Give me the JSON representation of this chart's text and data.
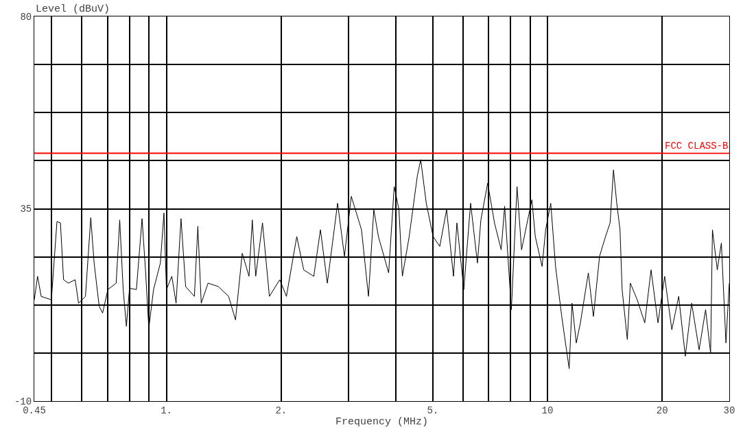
{
  "chart_data": {
    "type": "line",
    "xlabel": "Frequency (MHz)",
    "ylabel": "Level (dBuV)",
    "log": "x",
    "grid": true,
    "marker": "none",
    "line_style": "solid",
    "xlim": [
      0.45,
      30
    ],
    "ylim": [
      -10,
      80
    ],
    "xticks": [
      {
        "value": 0.45,
        "label": "0.45"
      },
      {
        "value": 0.5,
        "label": null
      },
      {
        "value": 0.6,
        "label": null
      },
      {
        "value": 0.7,
        "label": null
      },
      {
        "value": 0.8,
        "label": null
      },
      {
        "value": 0.9,
        "label": null
      },
      {
        "value": 1,
        "label": "1."
      },
      {
        "value": 2,
        "label": "2."
      },
      {
        "value": 3,
        "label": null
      },
      {
        "value": 4,
        "label": null
      },
      {
        "value": 5,
        "label": "5."
      },
      {
        "value": 6,
        "label": null
      },
      {
        "value": 7,
        "label": null
      },
      {
        "value": 8,
        "label": null
      },
      {
        "value": 9,
        "label": null
      },
      {
        "value": 10,
        "label": "10"
      },
      {
        "value": 20,
        "label": "20"
      },
      {
        "value": 30,
        "label": "30"
      }
    ],
    "yticks": [
      -10,
      {
        "value": 1.25,
        "label": null
      },
      {
        "value": 12.5,
        "label": null
      },
      {
        "value": 23.75,
        "label": null
      },
      35,
      {
        "value": 46.25,
        "label": null
      },
      {
        "value": 57.5,
        "label": null
      },
      {
        "value": 68.75,
        "label": null
      },
      80
    ],
    "ref_lines": [
      {
        "axis": "y",
        "value": 48,
        "label": "FCC CLASS-B",
        "color": "#ff0000",
        "line_style": "solid"
      }
    ],
    "series": [
      {
        "color": "#000000",
        "x": [
          0.45,
          0.459,
          0.469,
          0.499,
          0.516,
          0.527,
          0.537,
          0.553,
          0.576,
          0.588,
          0.613,
          0.633,
          0.646,
          0.666,
          0.68,
          0.702,
          0.738,
          0.754,
          0.77,
          0.785,
          0.8,
          0.834,
          0.863,
          0.881,
          0.899,
          0.925,
          0.964,
          0.985,
          1.0,
          1.033,
          1.06,
          1.092,
          1.123,
          1.184,
          1.209,
          1.234,
          1.286,
          1.368,
          1.456,
          1.518,
          1.581,
          1.647,
          1.68,
          1.715,
          1.787,
          1.863,
          1.983,
          2.065,
          2.198,
          2.292,
          2.436,
          2.536,
          2.644,
          2.813,
          2.932,
          3.056,
          3.25,
          3.39,
          3.501,
          3.6,
          3.83,
          3.96,
          4.076,
          4.161,
          4.336,
          4.553,
          4.649,
          4.807,
          5.01,
          5.216,
          5.436,
          5.666,
          5.786,
          6.031,
          6.284,
          6.549,
          6.687,
          6.967,
          7.26,
          7.56,
          7.72,
          8.04,
          8.32,
          8.55,
          9.1,
          9.29,
          9.68,
          9.89,
          10.2,
          10.5,
          10.9,
          11.4,
          11.6,
          11.9,
          12.2,
          12.8,
          13.2,
          13.7,
          14.2,
          14.6,
          14.9,
          15.2,
          15.5,
          15.7,
          16.2,
          16.5,
          17.2,
          18.0,
          18.7,
          19.5,
          20.3,
          21.2,
          22.1,
          23.0,
          23.9,
          25.0,
          26.0,
          26.8,
          27.1,
          27.9,
          28.6,
          29.4,
          30.0
        ],
        "values": [
          13.7,
          19.2,
          14.5,
          13.7,
          32.0,
          31.7,
          18.4,
          17.6,
          18.4,
          12.9,
          14.5,
          32.9,
          22.3,
          12.2,
          10.6,
          16.1,
          17.6,
          32.4,
          16.1,
          7.5,
          16.4,
          16.1,
          32.7,
          20.7,
          7.0,
          16.1,
          22.3,
          34.0,
          16.1,
          19.2,
          12.9,
          32.7,
          16.8,
          14.5,
          30.9,
          12.9,
          17.6,
          16.8,
          14.5,
          9.0,
          24.6,
          19.2,
          32.4,
          19.2,
          31.7,
          14.5,
          18.4,
          14.5,
          28.5,
          20.7,
          19.2,
          30.1,
          17.6,
          36.3,
          23.9,
          37.9,
          30.1,
          14.5,
          34.8,
          28.5,
          20.0,
          40.2,
          34.8,
          19.2,
          28.5,
          42.6,
          46.5,
          36.3,
          28.5,
          26.2,
          34.8,
          19.2,
          31.7,
          16.1,
          36.3,
          22.3,
          32.4,
          41.0,
          31.7,
          25.4,
          35.6,
          11.4,
          40.2,
          25.4,
          37.1,
          28.5,
          21.5,
          30.1,
          36.3,
          21.5,
          9.8,
          -2.4,
          12.9,
          3.6,
          8.3,
          20.0,
          9.8,
          23.9,
          28.5,
          31.7,
          44.1,
          36.3,
          30.1,
          16.1,
          4.4,
          17.6,
          13.7,
          8.3,
          20.7,
          8.3,
          19.2,
          6.7,
          14.5,
          0.5,
          12.9,
          2.0,
          11.4,
          1.2,
          30.1,
          20.7,
          27.0,
          3.6,
          17.6
        ]
      }
    ]
  }
}
